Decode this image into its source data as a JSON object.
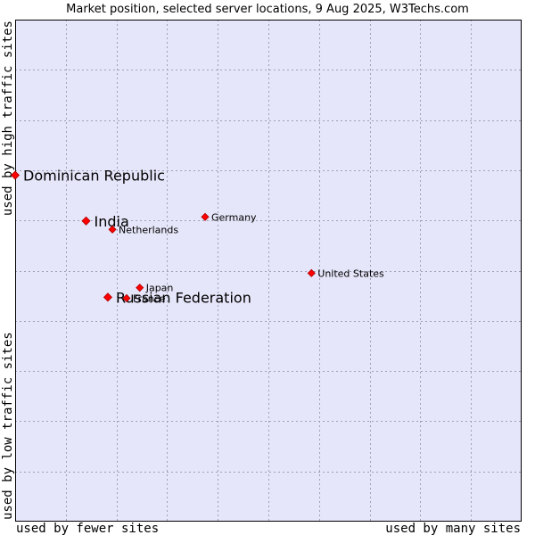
{
  "chart_data": {
    "type": "scatter",
    "title": "Market position, selected server locations, 9 Aug 2025, W3Techs.com",
    "xlabel_left": "used by fewer sites",
    "xlabel_right": "used by many sites",
    "ylabel_bottom": "used by low traffic sites",
    "ylabel_top": "used by high traffic sites",
    "xlim": [
      0,
      10
    ],
    "ylim": [
      0,
      10
    ],
    "grid": true,
    "colors": {
      "plot_background": "#e6e6fa",
      "grid": "#a0a0b4",
      "point": "#ff0000",
      "point_edge": "#aa0000",
      "text": "#000000"
    },
    "points": [
      {
        "label": "Dominican Republic",
        "x": 0.0,
        "y": 6.9,
        "size": "large"
      },
      {
        "label": "India",
        "x": 1.4,
        "y": 5.99,
        "size": "large"
      },
      {
        "label": "Russian Federation",
        "x": 1.83,
        "y": 4.47,
        "size": "large"
      },
      {
        "label": "Netherlands",
        "x": 1.92,
        "y": 5.82,
        "size": "small"
      },
      {
        "label": "Germany",
        "x": 3.75,
        "y": 6.07,
        "size": "small"
      },
      {
        "label": "Japan",
        "x": 2.46,
        "y": 4.66,
        "size": "small"
      },
      {
        "label": "France",
        "x": 2.2,
        "y": 4.45,
        "size": "small"
      },
      {
        "label": "United States",
        "x": 5.85,
        "y": 4.95,
        "size": "small"
      }
    ]
  }
}
